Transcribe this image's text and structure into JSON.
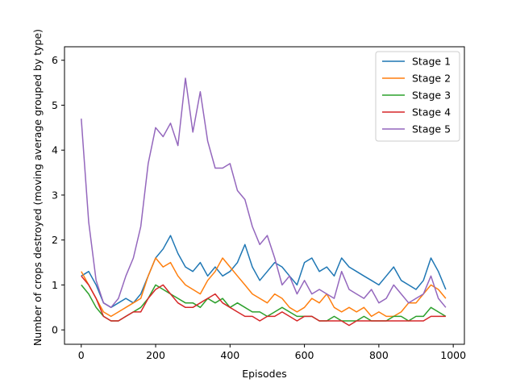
{
  "chart_data": {
    "type": "line",
    "title": "",
    "xlabel": "Episodes",
    "ylabel": "Number of crops destroyed (moving average grouped by type)",
    "xlim": [
      -45,
      1030
    ],
    "ylim": [
      -0.32,
      6.3
    ],
    "xticks": [
      0,
      200,
      400,
      600,
      800,
      1000
    ],
    "yticks": [
      0,
      1,
      2,
      3,
      4,
      5,
      6
    ],
    "legend_position": "upper-right",
    "grid": false,
    "x": [
      0,
      20,
      40,
      60,
      80,
      100,
      120,
      140,
      160,
      180,
      200,
      220,
      240,
      260,
      280,
      300,
      320,
      340,
      360,
      380,
      400,
      420,
      440,
      460,
      480,
      500,
      520,
      540,
      560,
      580,
      600,
      620,
      640,
      660,
      680,
      700,
      720,
      740,
      760,
      780,
      800,
      820,
      840,
      860,
      880,
      900,
      920,
      940,
      960,
      980
    ],
    "series": [
      {
        "name": "Stage 1",
        "color": "#1f77b4",
        "values": [
          1.2,
          1.3,
          1.0,
          0.6,
          0.5,
          0.6,
          0.7,
          0.6,
          0.8,
          1.2,
          1.6,
          1.8,
          2.1,
          1.7,
          1.4,
          1.3,
          1.5,
          1.2,
          1.4,
          1.2,
          1.3,
          1.5,
          1.9,
          1.4,
          1.1,
          1.3,
          1.5,
          1.4,
          1.2,
          1.0,
          1.5,
          1.6,
          1.3,
          1.4,
          1.2,
          1.6,
          1.4,
          1.3,
          1.2,
          1.1,
          1.0,
          1.2,
          1.4,
          1.1,
          1.0,
          0.9,
          1.1,
          1.6,
          1.3,
          0.9
        ]
      },
      {
        "name": "Stage 2",
        "color": "#ff7f0e",
        "values": [
          1.3,
          1.0,
          0.7,
          0.4,
          0.3,
          0.4,
          0.5,
          0.6,
          0.7,
          1.2,
          1.6,
          1.4,
          1.5,
          1.2,
          1.0,
          0.9,
          0.8,
          1.1,
          1.3,
          1.6,
          1.4,
          1.2,
          1.0,
          0.8,
          0.7,
          0.6,
          0.8,
          0.7,
          0.5,
          0.4,
          0.5,
          0.7,
          0.6,
          0.8,
          0.5,
          0.4,
          0.5,
          0.4,
          0.5,
          0.3,
          0.4,
          0.3,
          0.3,
          0.4,
          0.6,
          0.6,
          0.8,
          1.0,
          0.9,
          0.7
        ]
      },
      {
        "name": "Stage 3",
        "color": "#2ca02c",
        "values": [
          1.0,
          0.8,
          0.5,
          0.3,
          0.2,
          0.2,
          0.3,
          0.4,
          0.5,
          0.7,
          1.0,
          0.9,
          0.8,
          0.7,
          0.6,
          0.6,
          0.5,
          0.7,
          0.6,
          0.7,
          0.5,
          0.6,
          0.5,
          0.4,
          0.4,
          0.3,
          0.4,
          0.5,
          0.4,
          0.3,
          0.3,
          0.3,
          0.2,
          0.2,
          0.3,
          0.2,
          0.2,
          0.2,
          0.3,
          0.2,
          0.2,
          0.2,
          0.3,
          0.3,
          0.2,
          0.3,
          0.3,
          0.5,
          0.4,
          0.3
        ]
      },
      {
        "name": "Stage 4",
        "color": "#d62728",
        "values": [
          1.2,
          1.0,
          0.7,
          0.3,
          0.2,
          0.2,
          0.3,
          0.4,
          0.4,
          0.7,
          0.9,
          1.0,
          0.8,
          0.6,
          0.5,
          0.5,
          0.6,
          0.7,
          0.8,
          0.6,
          0.5,
          0.4,
          0.3,
          0.3,
          0.2,
          0.3,
          0.3,
          0.4,
          0.3,
          0.2,
          0.3,
          0.3,
          0.2,
          0.2,
          0.2,
          0.2,
          0.1,
          0.2,
          0.2,
          0.2,
          0.2,
          0.2,
          0.2,
          0.2,
          0.2,
          0.2,
          0.2,
          0.3,
          0.3,
          0.3
        ]
      },
      {
        "name": "Stage 5",
        "color": "#9467bd",
        "values": [
          4.7,
          2.4,
          1.1,
          0.6,
          0.5,
          0.7,
          1.2,
          1.6,
          2.3,
          3.7,
          4.5,
          4.3,
          4.6,
          4.1,
          5.6,
          4.4,
          5.3,
          4.2,
          3.6,
          3.6,
          3.7,
          3.1,
          2.9,
          2.3,
          1.9,
          2.1,
          1.6,
          1.0,
          1.2,
          0.8,
          1.1,
          0.8,
          0.9,
          0.8,
          0.7,
          1.3,
          0.9,
          0.8,
          0.7,
          0.9,
          0.6,
          0.7,
          1.0,
          0.8,
          0.6,
          0.7,
          0.8,
          1.2,
          0.7,
          0.5
        ]
      }
    ]
  }
}
